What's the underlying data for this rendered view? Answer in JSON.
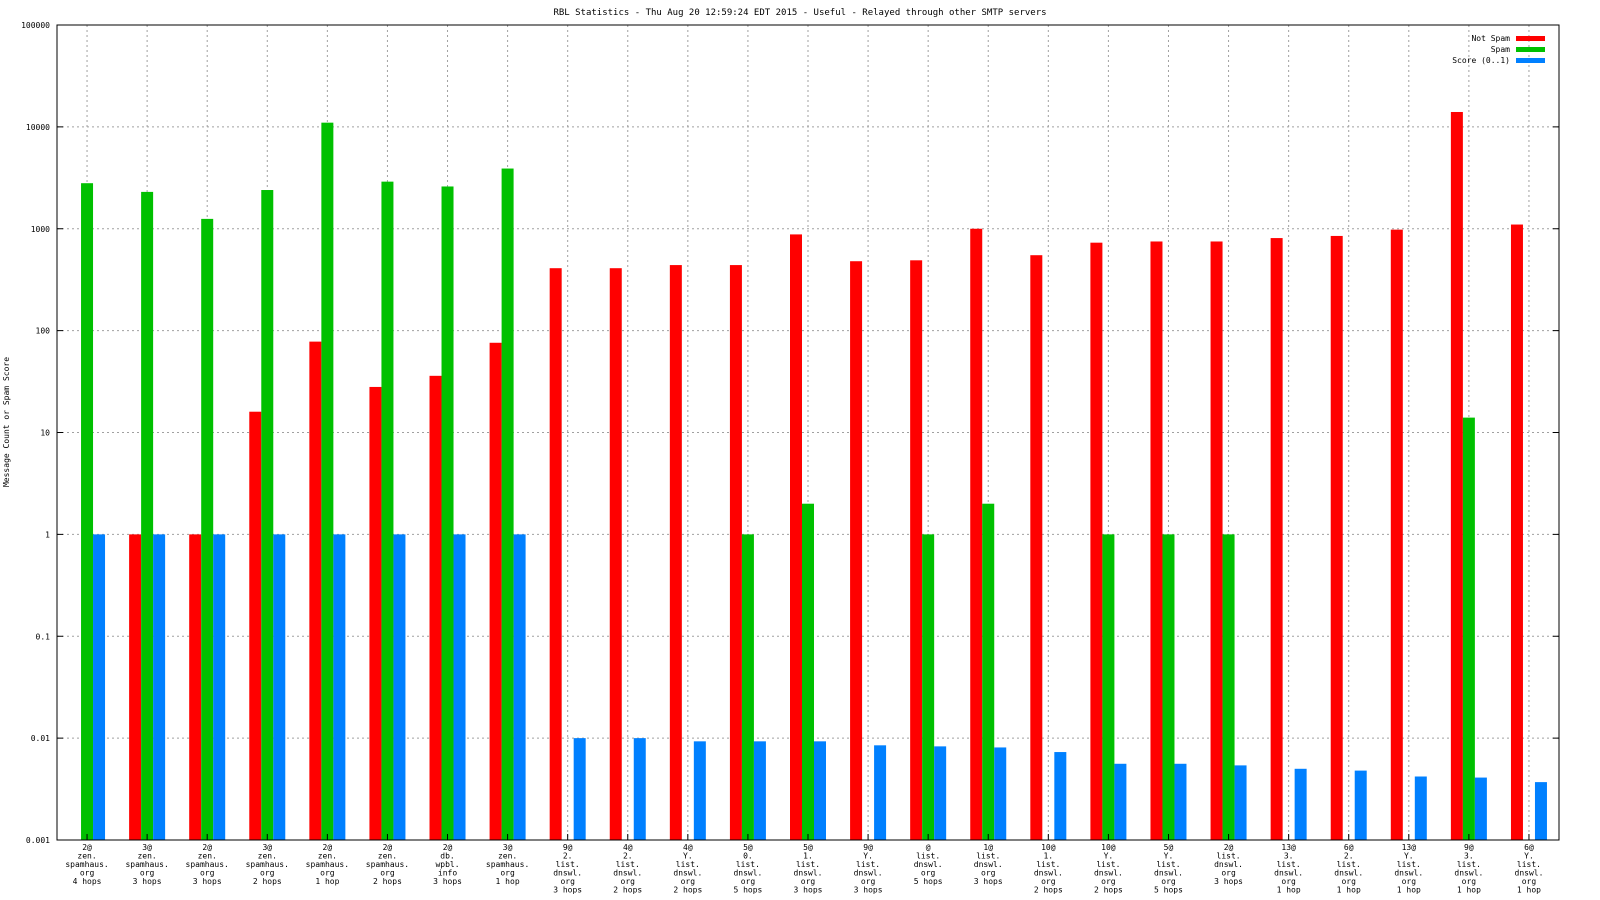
{
  "chart_data": {
    "type": "bar",
    "title": "RBL Statistics - Thu Aug 20 12:59:24 EDT 2015 - Useful - Relayed through other SMTP servers",
    "xlabel": "",
    "ylabel": "Message Count or Spam Score",
    "yscale": "log",
    "ylim": [
      0.001,
      100000
    ],
    "yticks": [
      "0.001",
      "0.01",
      "0.1",
      "1",
      "10",
      "100",
      "1000",
      "10000",
      "100000"
    ],
    "grid": true,
    "legend_position": "top-right",
    "categories": [
      [
        "2@",
        "zen.",
        "spamhaus.",
        "org",
        "4 hops"
      ],
      [
        "3@",
        "zen.",
        "spamhaus.",
        "org",
        "3 hops"
      ],
      [
        "2@",
        "zen.",
        "spamhaus.",
        "org",
        "3 hops"
      ],
      [
        "3@",
        "zen.",
        "spamhaus.",
        "org",
        "2 hops"
      ],
      [
        "2@",
        "zen.",
        "spamhaus.",
        "org",
        "1 hop"
      ],
      [
        "2@",
        "zen.",
        "spamhaus.",
        "org",
        "2 hops"
      ],
      [
        "2@",
        "db.",
        "wpbl.",
        "info",
        "3 hops"
      ],
      [
        "3@",
        "zen.",
        "spamhaus.",
        "org",
        "1 hop"
      ],
      [
        "9@",
        "2.",
        "list.",
        "dnswl.",
        "org",
        "3 hops"
      ],
      [
        "4@",
        "2.",
        "list.",
        "dnswl.",
        "org",
        "2 hops"
      ],
      [
        "4@",
        "Y.",
        "list.",
        "dnswl.",
        "org",
        "2 hops"
      ],
      [
        "5@",
        "0.",
        "list.",
        "dnswl.",
        "org",
        "5 hops"
      ],
      [
        "5@",
        "1.",
        "list.",
        "dnswl.",
        "org",
        "3 hops"
      ],
      [
        "9@",
        "Y.",
        "list.",
        "dnswl.",
        "org",
        "3 hops"
      ],
      [
        "@",
        "list.",
        "dnswl.",
        "org",
        "5 hops"
      ],
      [
        "1@",
        "list.",
        "dnswl.",
        "org",
        "3 hops"
      ],
      [
        "10@",
        "1.",
        "list.",
        "dnswl.",
        "org",
        "2 hops"
      ],
      [
        "10@",
        "Y.",
        "list.",
        "dnswl.",
        "org",
        "2 hops"
      ],
      [
        "5@",
        "Y.",
        "list.",
        "dnswl.",
        "org",
        "5 hops"
      ],
      [
        "2@",
        "list.",
        "dnswl.",
        "org",
        "3 hops"
      ],
      [
        "13@",
        "3.",
        "list.",
        "dnswl.",
        "org",
        "1 hop"
      ],
      [
        "6@",
        "2.",
        "list.",
        "dnswl.",
        "org",
        "1 hop"
      ],
      [
        "13@",
        "Y.",
        "list.",
        "dnswl.",
        "org",
        "1 hop"
      ],
      [
        "9@",
        "3.",
        "list.",
        "dnswl.",
        "org",
        "1 hop"
      ],
      [
        "6@",
        "Y.",
        "list.",
        "dnswl.",
        "org",
        "1 hop"
      ]
    ],
    "series": [
      {
        "name": "Not Spam",
        "color": "#ff0000",
        "values": [
          null,
          1,
          1,
          16,
          78,
          28,
          36,
          76,
          410,
          410,
          440,
          440,
          880,
          480,
          490,
          1000,
          550,
          730,
          750,
          750,
          810,
          850,
          980,
          14000,
          1100
        ]
      },
      {
        "name": "Spam",
        "color": "#00c000",
        "values": [
          2800,
          2300,
          1250,
          2400,
          11000,
          2900,
          2600,
          3900,
          null,
          null,
          null,
          1,
          2,
          null,
          1,
          2,
          null,
          1,
          1,
          1,
          null,
          null,
          null,
          14,
          null
        ]
      },
      {
        "name": "Score (0..1)",
        "color": "#0080ff",
        "values": [
          1,
          1,
          1,
          1,
          1,
          1,
          1,
          1,
          0.01,
          0.01,
          0.0093,
          0.0093,
          0.0093,
          0.0085,
          0.0083,
          0.0081,
          0.0073,
          0.0056,
          0.0056,
          0.0054,
          0.005,
          0.0048,
          0.0042,
          0.0041,
          0.0037
        ]
      }
    ]
  }
}
